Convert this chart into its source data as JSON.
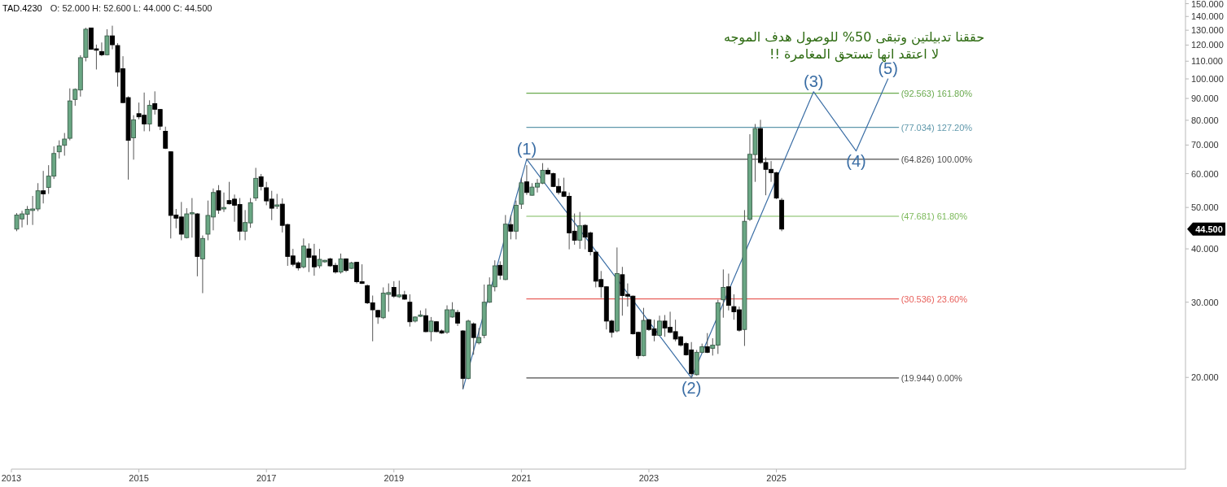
{
  "chart_data": {
    "type": "candlestick",
    "title": "TAD.4230",
    "subtitle": "O: 52.000 H: 52.600 L: 44.000 C: 44.500",
    "x": [
      "2013-02",
      "2013-03",
      "2013-04",
      "2013-05",
      "2013-06",
      "2013-07",
      "2013-08",
      "2013-09",
      "2013-10",
      "2013-11",
      "2013-12",
      "2014-01",
      "2014-02",
      "2014-03",
      "2014-04",
      "2014-05",
      "2014-06",
      "2014-07",
      "2014-08",
      "2014-09",
      "2014-10",
      "2014-11",
      "2014-12",
      "2015-01",
      "2015-02",
      "2015-03",
      "2015-04",
      "2015-05",
      "2015-06",
      "2015-07",
      "2015-08",
      "2015-09",
      "2015-10",
      "2015-11",
      "2015-12",
      "2016-01",
      "2016-02",
      "2016-03",
      "2016-04",
      "2016-05",
      "2016-06",
      "2016-07",
      "2016-08",
      "2016-09",
      "2016-10",
      "2016-11",
      "2016-12",
      "2017-01",
      "2017-02",
      "2017-03",
      "2017-04",
      "2017-05",
      "2017-06",
      "2017-07",
      "2017-08",
      "2017-09",
      "2017-10",
      "2017-11",
      "2017-12",
      "2018-01",
      "2018-02",
      "2018-03",
      "2018-04",
      "2018-05",
      "2018-06",
      "2018-07",
      "2018-08",
      "2018-09",
      "2018-10",
      "2018-11",
      "2018-12",
      "2019-01",
      "2019-02",
      "2019-03",
      "2019-04",
      "2019-05",
      "2019-06",
      "2019-07",
      "2019-08",
      "2019-09",
      "2019-10",
      "2019-11",
      "2019-12",
      "2020-01",
      "2020-02",
      "2020-03",
      "2020-04",
      "2020-05",
      "2020-06",
      "2020-07",
      "2020-08",
      "2020-09",
      "2020-10",
      "2020-11",
      "2020-12",
      "2021-01",
      "2021-02",
      "2021-03",
      "2021-04",
      "2021-05",
      "2021-06",
      "2021-07",
      "2021-08",
      "2021-09",
      "2021-10",
      "2021-11",
      "2021-12",
      "2022-01",
      "2022-02",
      "2022-03",
      "2022-04",
      "2022-05",
      "2022-06",
      "2022-07",
      "2022-08",
      "2022-09",
      "2022-10",
      "2022-11",
      "2022-12",
      "2023-01",
      "2023-02",
      "2023-03",
      "2023-04",
      "2023-05",
      "2023-06",
      "2023-07",
      "2023-08",
      "2023-09",
      "2023-10",
      "2023-11",
      "2023-12",
      "2024-01",
      "2024-02",
      "2024-03",
      "2024-04",
      "2024-05",
      "2024-06",
      "2024-07",
      "2024-08",
      "2024-09",
      "2024-10",
      "2024-11",
      "2024-12",
      "2025-01",
      "2025-02"
    ],
    "ohlc": [
      [
        44.5,
        48.5,
        44.0,
        48.0
      ],
      [
        47.0,
        49.1,
        44.9,
        48.3
      ],
      [
        48.2,
        50.4,
        45.5,
        49.5
      ],
      [
        49.2,
        53.2,
        45.5,
        49.6
      ],
      [
        49.6,
        57.0,
        49.0,
        54.7
      ],
      [
        54.7,
        60.9,
        51.1,
        53.8
      ],
      [
        55.7,
        62.8,
        53.8,
        59.2
      ],
      [
        59.2,
        69.5,
        58.3,
        66.9
      ],
      [
        67.5,
        71.8,
        65.1,
        69.7
      ],
      [
        69.9,
        74.7,
        66.1,
        72.3
      ],
      [
        72.6,
        95.0,
        71.8,
        88.8
      ],
      [
        89.5,
        95.0,
        86.5,
        94.5
      ],
      [
        94.2,
        113.6,
        90.9,
        112.1
      ],
      [
        112.3,
        131.8,
        109.9,
        130.7
      ],
      [
        131.6,
        131.8,
        117.0,
        117.3
      ],
      [
        117.6,
        120.3,
        105.2,
        116.7
      ],
      [
        115.9,
        121.7,
        113.0,
        113.9
      ],
      [
        113.9,
        130.7,
        113.5,
        126.1
      ],
      [
        126.1,
        133.2,
        117.3,
        120.2
      ],
      [
        119.7,
        121.2,
        95.9,
        103.7
      ],
      [
        105.6,
        113.0,
        87.7,
        88.0
      ],
      [
        90.4,
        91.0,
        58.1,
        71.8
      ],
      [
        72.8,
        82.2,
        64.7,
        80.2
      ],
      [
        82.9,
        88.0,
        80.4,
        81.5
      ],
      [
        82.2,
        92.9,
        75.4,
        78.4
      ],
      [
        78.4,
        89.1,
        75.4,
        86.7
      ],
      [
        87.5,
        93.5,
        82.5,
        84.9
      ],
      [
        84.8,
        85.0,
        75.9,
        77.5
      ],
      [
        75.4,
        77.3,
        68.5,
        68.8
      ],
      [
        67.5,
        67.6,
        42.3,
        47.9
      ],
      [
        48.0,
        49.6,
        44.7,
        47.2
      ],
      [
        47.5,
        51.5,
        41.9,
        43.3
      ],
      [
        42.5,
        49.8,
        42.3,
        48.3
      ],
      [
        48.3,
        52.6,
        42.5,
        48.6
      ],
      [
        48.3,
        48.5,
        34.5,
        38.4
      ],
      [
        37.9,
        43.0,
        31.5,
        42.3
      ],
      [
        43.3,
        51.9,
        41.9,
        47.9
      ],
      [
        47.5,
        55.4,
        44.2,
        54.2
      ],
      [
        54.7,
        56.4,
        48.3,
        49.3
      ],
      [
        49.6,
        54.2,
        48.8,
        50.0
      ],
      [
        51.9,
        57.4,
        50.8,
        51.0
      ],
      [
        52.3,
        53.6,
        46.3,
        50.6
      ],
      [
        50.8,
        52.6,
        41.9,
        44.0
      ],
      [
        44.0,
        49.3,
        41.9,
        46.1
      ],
      [
        46.0,
        52.6,
        44.8,
        51.3
      ],
      [
        52.6,
        61.9,
        51.8,
        58.5
      ],
      [
        59.0,
        59.9,
        54.8,
        56.0
      ],
      [
        55.6,
        57.4,
        50.6,
        51.8
      ],
      [
        52.3,
        54.7,
        46.7,
        49.8
      ],
      [
        50.3,
        53.8,
        49.6,
        50.7
      ],
      [
        50.9,
        52.5,
        43.7,
        45.4
      ],
      [
        45.6,
        45.8,
        36.5,
        38.4
      ],
      [
        38.5,
        40.0,
        36.4,
        36.8
      ],
      [
        37.1,
        37.4,
        35.6,
        36.1
      ],
      [
        36.3,
        42.3,
        36.0,
        40.6
      ],
      [
        40.0,
        41.2,
        35.3,
        38.2
      ],
      [
        38.5,
        41.1,
        34.6,
        36.3
      ],
      [
        36.5,
        40.0,
        36.0,
        37.8
      ],
      [
        37.3,
        37.7,
        37.1,
        37.6
      ],
      [
        37.9,
        38.1,
        36.3,
        36.5
      ],
      [
        36.6,
        37.1,
        35.0,
        35.3
      ],
      [
        35.3,
        39.0,
        35.0,
        37.9
      ],
      [
        37.9,
        38.0,
        35.3,
        35.6
      ],
      [
        36.0,
        37.3,
        35.9,
        37.1
      ],
      [
        37.2,
        37.3,
        33.2,
        33.5
      ],
      [
        33.5,
        36.8,
        33.1,
        33.2
      ],
      [
        32.8,
        33.0,
        29.7,
        29.9
      ],
      [
        29.9,
        31.1,
        24.3,
        28.8
      ],
      [
        28.7,
        28.8,
        26.7,
        27.7
      ],
      [
        27.6,
        32.5,
        27.4,
        31.5
      ],
      [
        31.3,
        33.2,
        28.5,
        31.6
      ],
      [
        32.5,
        33.6,
        30.7,
        31.0
      ],
      [
        30.9,
        33.7,
        30.7,
        31.2
      ],
      [
        31.2,
        31.9,
        30.4,
        30.5
      ],
      [
        30.0,
        31.3,
        26.3,
        27.0
      ],
      [
        27.1,
        27.8,
        26.9,
        27.7
      ],
      [
        27.8,
        28.7,
        27.7,
        28.0
      ],
      [
        27.9,
        29.0,
        25.5,
        25.6
      ],
      [
        25.6,
        27.7,
        24.3,
        27.1
      ],
      [
        27.0,
        27.1,
        25.5,
        25.6
      ],
      [
        25.7,
        25.9,
        25.3,
        25.4
      ],
      [
        25.5,
        29.5,
        25.3,
        28.8
      ],
      [
        27.7,
        30.0,
        27.6,
        28.8
      ],
      [
        28.4,
        28.8,
        26.4,
        26.8
      ],
      [
        25.7,
        25.8,
        18.8,
        19.9
      ],
      [
        19.9,
        27.3,
        19.8,
        27.1
      ],
      [
        26.7,
        26.9,
        22.6,
        24.8
      ],
      [
        24.1,
        26.1,
        23.9,
        24.8
      ],
      [
        25.1,
        33.0,
        24.7,
        30.0
      ],
      [
        30.0,
        34.3,
        29.9,
        32.9
      ],
      [
        32.6,
        37.6,
        31.8,
        36.5
      ],
      [
        36.6,
        37.4,
        33.9,
        34.7
      ],
      [
        33.9,
        48.0,
        33.8,
        45.7
      ],
      [
        45.6,
        48.0,
        42.1,
        44.0
      ],
      [
        44.0,
        51.9,
        42.1,
        50.6
      ],
      [
        50.9,
        58.7,
        49.6,
        57.1
      ],
      [
        57.4,
        62.8,
        53.5,
        54.2
      ],
      [
        53.4,
        57.0,
        53.3,
        55.8
      ],
      [
        55.8,
        58.3,
        54.2,
        57.0
      ],
      [
        57.0,
        63.5,
        56.7,
        61.1
      ],
      [
        61.1,
        61.9,
        59.7,
        59.9
      ],
      [
        60.0,
        60.3,
        55.8,
        56.0
      ],
      [
        56.0,
        58.5,
        53.6,
        54.2
      ],
      [
        54.4,
        58.7,
        52.9,
        53.1
      ],
      [
        53.1,
        54.2,
        39.9,
        43.6
      ],
      [
        44.0,
        48.4,
        40.9,
        41.9
      ],
      [
        41.9,
        48.8,
        40.0,
        45.3
      ],
      [
        45.4,
        45.7,
        39.9,
        42.6
      ],
      [
        43.6,
        43.9,
        38.6,
        39.4
      ],
      [
        39.3,
        39.6,
        32.5,
        33.6
      ],
      [
        33.9,
        35.5,
        30.7,
        32.6
      ],
      [
        32.6,
        32.7,
        25.9,
        27.1
      ],
      [
        27.1,
        27.3,
        24.8,
        25.5
      ],
      [
        25.7,
        40.3,
        25.5,
        35.0
      ],
      [
        34.8,
        36.3,
        27.9,
        31.1
      ],
      [
        31.3,
        33.2,
        29.3,
        31.0
      ],
      [
        31.0,
        31.1,
        25.2,
        25.3
      ],
      [
        25.5,
        25.6,
        22.1,
        22.5
      ],
      [
        22.5,
        29.1,
        22.4,
        27.2
      ],
      [
        27.3,
        27.4,
        25.7,
        25.9
      ],
      [
        26.0,
        27.3,
        24.3,
        25.1
      ],
      [
        25.1,
        27.9,
        25.0,
        27.1
      ],
      [
        27.1,
        28.0,
        24.9,
        26.1
      ],
      [
        26.2,
        28.5,
        25.4,
        25.5
      ],
      [
        25.6,
        27.3,
        24.3,
        24.6
      ],
      [
        24.9,
        25.0,
        23.6,
        23.8
      ],
      [
        24.0,
        24.2,
        22.5,
        22.6
      ],
      [
        23.2,
        24.2,
        19.9,
        20.4
      ],
      [
        20.3,
        23.2,
        20.2,
        22.9
      ],
      [
        22.9,
        24.0,
        22.8,
        23.6
      ],
      [
        23.6,
        25.4,
        22.8,
        22.9
      ],
      [
        23.4,
        24.7,
        22.5,
        23.8
      ],
      [
        23.8,
        30.4,
        22.7,
        29.9
      ],
      [
        30.4,
        35.8,
        27.6,
        32.5
      ],
      [
        32.6,
        35.0,
        28.7,
        29.5
      ],
      [
        29.3,
        31.3,
        27.3,
        28.5
      ],
      [
        28.8,
        29.3,
        25.6,
        25.8
      ],
      [
        25.9,
        49.3,
        23.7,
        46.4
      ],
      [
        46.9,
        74.2,
        46.5,
        66.6
      ],
      [
        66.5,
        78.4,
        57.4,
        76.5
      ],
      [
        76.5,
        80.2,
        63.2,
        63.7
      ],
      [
        63.7,
        65.5,
        53.4,
        61.4
      ],
      [
        61.4,
        64.2,
        57.4,
        60.3
      ],
      [
        60.3,
        60.6,
        52.3,
        52.6
      ],
      [
        52.0,
        52.6,
        44.0,
        44.5
      ]
    ],
    "colors": [
      "#6aa784",
      "#6aa784",
      "#6aa784",
      "#6aa784",
      "#6aa784",
      "#000000",
      "#6aa784",
      "#6aa784",
      "#6aa784",
      "#6aa784",
      "#6aa784",
      "#6aa784",
      "#6aa784",
      "#6aa784",
      "#000000",
      "#000000",
      "#000000",
      "#6aa784",
      "#000000",
      "#000000",
      "#000000",
      "#000000",
      "#6aa784",
      "#000000",
      "#000000",
      "#6aa784",
      "#000000",
      "#000000",
      "#000000",
      "#000000",
      "#000000",
      "#000000",
      "#6aa784",
      "#6aa784",
      "#000000",
      "#6aa784",
      "#6aa784",
      "#6aa784",
      "#000000",
      "#6aa784",
      "#000000",
      "#000000",
      "#000000",
      "#6aa784",
      "#6aa784",
      "#6aa784",
      "#000000",
      "#000000",
      "#000000",
      "#6aa784",
      "#000000",
      "#000000",
      "#000000",
      "#000000",
      "#6aa784",
      "#000000",
      "#000000",
      "#6aa784",
      "#6aa784",
      "#000000",
      "#000000",
      "#6aa784",
      "#000000",
      "#6aa784",
      "#000000",
      "#000000",
      "#000000",
      "#000000",
      "#000000",
      "#6aa784",
      "#6aa784",
      "#000000",
      "#6aa784",
      "#000000",
      "#000000",
      "#6aa784",
      "#6aa784",
      "#000000",
      "#6aa784",
      "#000000",
      "#000000",
      "#6aa784",
      "#6aa784",
      "#000000",
      "#000000",
      "#6aa784",
      "#000000",
      "#6aa784",
      "#6aa784",
      "#6aa784",
      "#6aa784",
      "#000000",
      "#6aa784",
      "#000000",
      "#6aa784",
      "#6aa784",
      "#000000",
      "#6aa784",
      "#6aa784",
      "#6aa784",
      "#000000",
      "#000000",
      "#000000",
      "#000000",
      "#000000",
      "#000000",
      "#6aa784",
      "#000000",
      "#000000",
      "#000000",
      "#000000",
      "#000000",
      "#000000",
      "#6aa784",
      "#000000",
      "#000000",
      "#000000",
      "#000000",
      "#6aa784",
      "#000000",
      "#000000",
      "#6aa784",
      "#000000",
      "#000000",
      "#000000",
      "#000000",
      "#000000",
      "#000000",
      "#6aa784",
      "#6aa784",
      "#000000",
      "#6aa784",
      "#6aa784",
      "#6aa784",
      "#000000",
      "#000000",
      "#000000",
      "#6aa784",
      "#6aa784",
      "#6aa784",
      "#000000",
      "#000000",
      "#000000",
      "#000000",
      "#000000"
    ],
    "series": [
      {
        "type": "line",
        "name": "(92.563) 161.80%",
        "color": "#6aaa4e",
        "x": [
          "2021-02",
          "2026-12"
        ],
        "values": [
          92.563,
          92.563
        ]
      },
      {
        "type": "line",
        "name": "(77.034) 127.20%",
        "color": "#5f98ab",
        "x": [
          "2021-02",
          "2026-12"
        ],
        "values": [
          77.034,
          77.034
        ]
      },
      {
        "type": "line",
        "name": "(64.826) 100.00%",
        "color": "#4d4d4d",
        "x": [
          "2021-02",
          "2026-12"
        ],
        "values": [
          64.826,
          64.826
        ]
      },
      {
        "type": "line",
        "name": "(47.681) 61.80%",
        "color": "#7dba5c",
        "x": [
          "2021-02",
          "2026-12"
        ],
        "values": [
          47.681,
          47.681
        ]
      },
      {
        "type": "line",
        "name": "(30.536) 23.60%",
        "color": "#e8615c",
        "x": [
          "2021-02",
          "2026-12"
        ],
        "values": [
          30.536,
          30.536
        ]
      },
      {
        "type": "line",
        "name": "(19.944) 0.00%",
        "color": "#4d4d4d",
        "x": [
          "2021-02",
          "2026-12"
        ],
        "values": [
          19.944,
          19.944
        ]
      },
      {
        "type": "line",
        "color": "#3b6ea5",
        "x": [
          "2020-02",
          "2021-02",
          "2023-09",
          "2025-08",
          "2026-04",
          "2026-10"
        ],
        "values": [
          18.8,
          64.826,
          19.944,
          93.3,
          67.8,
          100
        ]
      }
    ],
    "annotations": [
      "44.500",
      "حققنا تدبيلتين وتبقى 50% للوصول هدف الموجه",
      "لا اعتقد انها تستحق المغامرة !!",
      {
        "text": "(1)",
        "x": "2021-02",
        "y": 64.826
      },
      {
        "text": "(2)",
        "x": "2023-09",
        "y": 19.944
      },
      {
        "text": "(3)",
        "x": "2025-08",
        "y": 93.3
      },
      {
        "text": "(4)",
        "x": "2026-04",
        "y": 67.8
      },
      {
        "text": "(5)",
        "x": "2026-10",
        "y": 100
      }
    ],
    "log": "y",
    "xlim": [
      "2013-01-01",
      "2031-06-01"
    ],
    "xticks": [
      "2013",
      "2015",
      "2017",
      "2019",
      "2021",
      "2023",
      "2025"
    ],
    "ylim": [
      12.2,
      153
    ],
    "yticks": [
      {
        "value": 20,
        "label": "20.000"
      },
      {
        "value": 30,
        "label": "30.000"
      },
      {
        "value": 40,
        "label": "40.000"
      },
      {
        "value": 50,
        "label": "50.000"
      },
      {
        "value": 60,
        "label": "60.000"
      },
      {
        "value": 70,
        "label": "70.000"
      },
      {
        "value": 80,
        "label": "80.000"
      },
      {
        "value": 90,
        "label": "90.000"
      },
      {
        "value": 100,
        "label": "100.000"
      },
      {
        "value": 110,
        "label": "110.000"
      },
      {
        "value": 120,
        "label": "120.000"
      },
      {
        "value": 130,
        "label": "130.000"
      },
      {
        "value": 140,
        "label": "140.000"
      },
      {
        "value": 150,
        "label": "150.000"
      }
    ]
  }
}
